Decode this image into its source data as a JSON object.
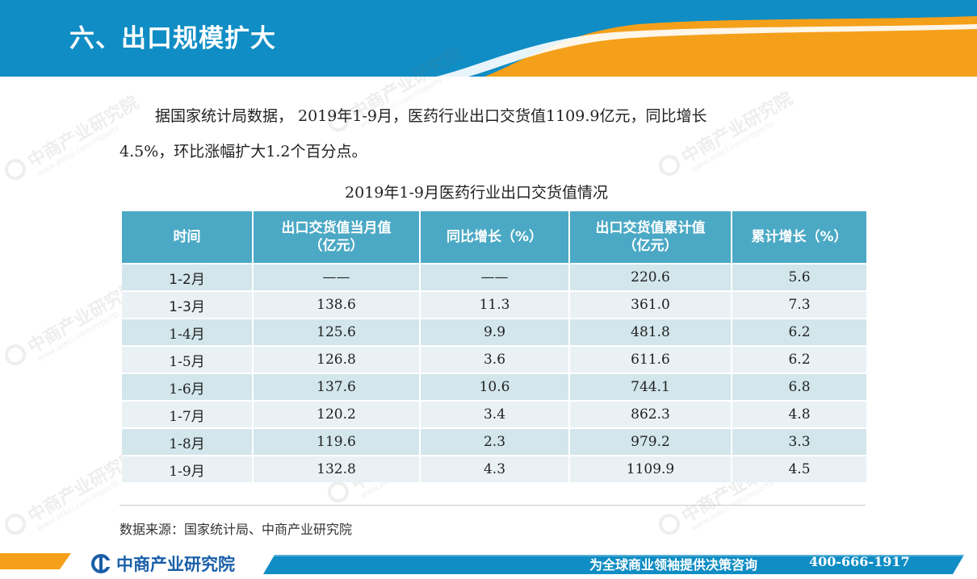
{
  "header": {
    "title": "六、出口规模扩大"
  },
  "intro": {
    "line1": "据国家统计局数据， 2019年1-9月，医药行业出口交货值1109.9亿元，同比增长",
    "line2": "4.5%，环比涨幅扩大1.2个百分点。"
  },
  "table": {
    "title": "2019年1-9月医药行业出口交货值情况",
    "headers": {
      "time": "时间",
      "monthly_line1": "出口交货值当月值",
      "monthly_line2": "（亿元）",
      "yoy": "同比增长（%）",
      "cumulative_line1": "出口交货值累计值",
      "cumulative_line2": "（亿元）",
      "cum_growth": "累计增长（%）"
    },
    "rows": [
      {
        "time": "1-2月",
        "monthly": "——",
        "yoy": "——",
        "cumulative": "220.6",
        "cum_growth": "5.6"
      },
      {
        "time": "1-3月",
        "monthly": "138.6",
        "yoy": "11.3",
        "cumulative": "361.0",
        "cum_growth": "7.3"
      },
      {
        "time": "1-4月",
        "monthly": "125.6",
        "yoy": "9.9",
        "cumulative": "481.8",
        "cum_growth": "6.2"
      },
      {
        "time": "1-5月",
        "monthly": "126.8",
        "yoy": "3.6",
        "cumulative": "611.6",
        "cum_growth": "6.2"
      },
      {
        "time": "1-6月",
        "monthly": "137.6",
        "yoy": "10.6",
        "cumulative": "744.1",
        "cum_growth": "6.8"
      },
      {
        "time": "1-7月",
        "monthly": "120.2",
        "yoy": "3.4",
        "cumulative": "862.3",
        "cum_growth": "4.8"
      },
      {
        "time": "1-8月",
        "monthly": "119.6",
        "yoy": "2.3",
        "cumulative": "979.2",
        "cum_growth": "3.3"
      },
      {
        "time": "1-9月",
        "monthly": "132.8",
        "yoy": "4.3",
        "cumulative": "1109.9",
        "cum_growth": "4.5"
      }
    ]
  },
  "source": "数据来源：国家统计局、中商产业研究院",
  "footer": {
    "brand": "中商产业研究院",
    "slogan": "为全球商业领袖提供决策咨询",
    "phone": "400-666-1917"
  },
  "watermark": {
    "cn": "中商产业研究院",
    "en": "www.askci.com/reports"
  },
  "colors": {
    "header_blue": "#0f8dc4",
    "accent_orange": "#f5a01a",
    "table_header": "#4ba9c5",
    "row_dark": "#d2e6ec",
    "row_light": "#e9f1f4",
    "brand_blue": "#1a5fa8"
  }
}
